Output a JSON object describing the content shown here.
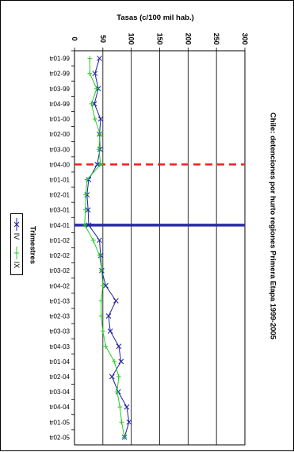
{
  "chart_data": {
    "type": "line",
    "title": "Chile: detenciones por hurto regiones Primera Etapa 1999-2005",
    "xlabel": "Trimestres",
    "ylabel": "Tasas (c/100 mil hab.)",
    "ylim": [
      0,
      300
    ],
    "yticks": [
      "0",
      "50",
      "100",
      "150",
      "200",
      "250",
      "300"
    ],
    "categories": [
      "tr01-99",
      "tr02-99",
      "tr03-99",
      "tr04-99",
      "tr01-00",
      "tr02-00",
      "tr03-00",
      "tr04-00",
      "tr01-01",
      "tr02-01",
      "tr03-01",
      "tr04-01",
      "tr01-02",
      "tr02-02",
      "tr03-02",
      "tr04-02",
      "tr01-03",
      "tr02-03",
      "tr03-03",
      "tr04-03",
      "tr01-04",
      "tr02-04",
      "tr03-04",
      "tr04-04",
      "tr01-05",
      "tr02-05"
    ],
    "series": [
      {
        "name": "IV",
        "color": "#1f1fa0",
        "marker": "x",
        "values": [
          44,
          36,
          42,
          35,
          46,
          44,
          45,
          40,
          25,
          22,
          24,
          25,
          44,
          46,
          48,
          55,
          73,
          60,
          63,
          78,
          82,
          66,
          77,
          92,
          96,
          88
        ]
      },
      {
        "name": "IX",
        "color": "#22cc22",
        "marker": "+",
        "values": [
          27,
          27,
          39,
          30,
          36,
          45,
          43,
          46,
          22,
          20,
          19,
          18,
          33,
          44,
          48,
          50,
          47,
          47,
          50,
          55,
          70,
          78,
          75,
          80,
          83,
          88
        ]
      }
    ],
    "reference_lines": [
      {
        "category": "tr04-00",
        "color": "#ee2222",
        "style": "dashed"
      },
      {
        "category": "tr04-01",
        "color": "#2a2aa8",
        "style": "solid"
      }
    ],
    "legend_placement": "left",
    "grid": true
  }
}
